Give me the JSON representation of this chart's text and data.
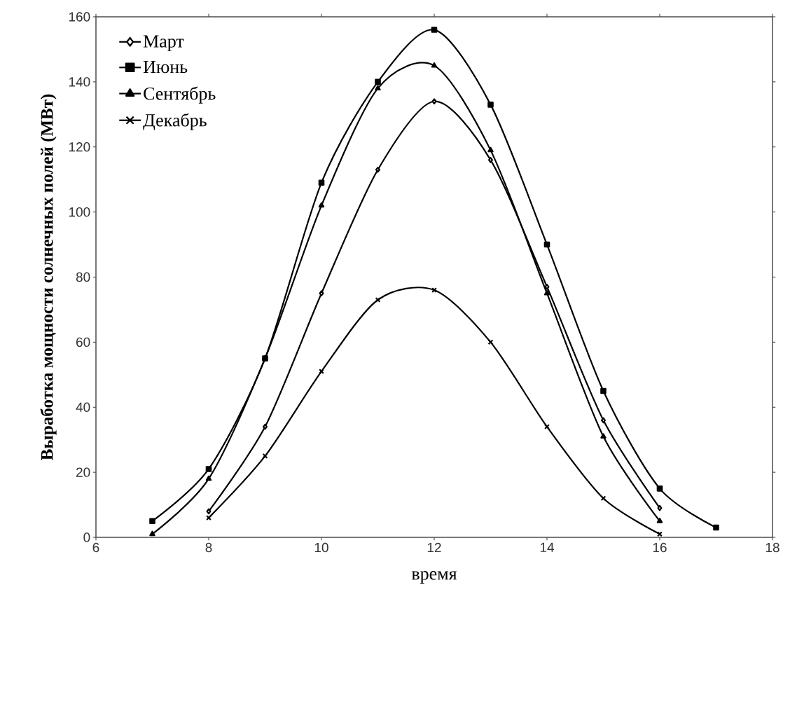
{
  "chart_data": {
    "type": "line",
    "xlabel": "время",
    "ylabel": "Выработка мощности солнечных полей (МВт)",
    "xlim": [
      6,
      18
    ],
    "xticks": [
      6,
      8,
      10,
      12,
      14,
      16,
      18
    ],
    "ylim": [
      0,
      160
    ],
    "yticks": [
      0,
      20,
      40,
      60,
      80,
      100,
      120,
      140,
      160
    ],
    "legend": "top left",
    "grid": false,
    "line_style": "solid",
    "series": [
      {
        "name": "Март",
        "color": "#000000",
        "marker": "diamond",
        "x": [
          8,
          9,
          10,
          11,
          12,
          13,
          14,
          15,
          16
        ],
        "values": [
          8,
          34,
          75,
          113,
          134,
          116,
          77,
          36,
          9
        ]
      },
      {
        "name": "Июнь",
        "color": "#000000",
        "marker": "square",
        "x": [
          7,
          8,
          9,
          10,
          11,
          12,
          13,
          14,
          15,
          16,
          17
        ],
        "values": [
          5,
          21,
          55,
          109,
          140,
          156,
          133,
          90,
          45,
          15,
          3
        ]
      },
      {
        "name": "Сентябрь",
        "color": "#000000",
        "marker": "triangle",
        "x": [
          7,
          8,
          9,
          10,
          11,
          12,
          13,
          14,
          15,
          16
        ],
        "values": [
          1,
          18,
          55,
          102,
          138,
          145,
          119,
          75,
          31,
          5
        ]
      },
      {
        "name": "Декабрь",
        "color": "#000000",
        "marker": "cross",
        "x": [
          8,
          9,
          10,
          11,
          12,
          13,
          14,
          15,
          16
        ],
        "values": [
          6,
          25,
          51,
          73,
          76,
          60,
          34,
          12,
          1
        ]
      }
    ]
  }
}
